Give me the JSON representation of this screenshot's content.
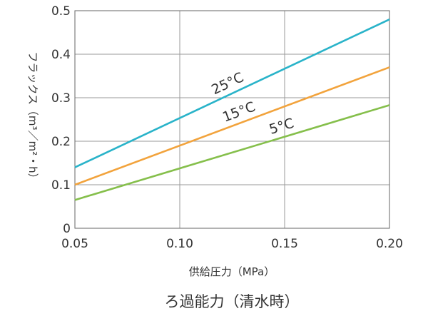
{
  "chart_data": {
    "type": "line",
    "title": "ろ過能力（清水時）",
    "xlabel": "供給圧力（MPa）",
    "ylabel": "フラックス（m³／m²・h）",
    "xlim": [
      0.05,
      0.2
    ],
    "ylim": [
      0,
      0.5
    ],
    "x_ticks": [
      "0.05",
      "0.10",
      "0.15",
      "0.20"
    ],
    "y_ticks": [
      "0",
      "0.1",
      "0.2",
      "0.3",
      "0.4",
      "0.5"
    ],
    "x_tick_values": [
      0.05,
      0.1,
      0.15,
      0.2
    ],
    "y_tick_values": [
      0,
      0.1,
      0.2,
      0.3,
      0.4,
      0.5
    ],
    "grid": true,
    "series": [
      {
        "name": "25°C",
        "color": "#29b3c9",
        "x": [
          0.05,
          0.2
        ],
        "y": [
          0.14,
          0.48
        ]
      },
      {
        "name": "15°C",
        "color": "#f2a33c",
        "x": [
          0.05,
          0.2
        ],
        "y": [
          0.1,
          0.37
        ]
      },
      {
        "name": "5°C",
        "color": "#85bf4b",
        "x": [
          0.05,
          0.2
        ],
        "y": [
          0.065,
          0.283
        ]
      }
    ],
    "series_label_at_x": [
      0.125,
      0.13,
      0.15
    ]
  }
}
